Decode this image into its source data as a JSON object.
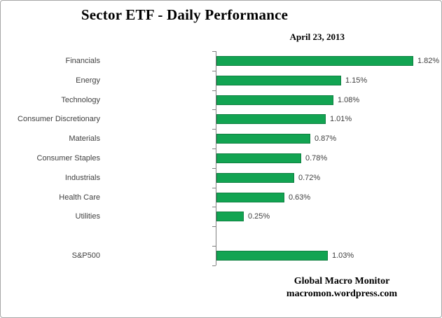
{
  "title": "Sector ETF - Daily Performance",
  "date": "April 23, 2013",
  "attribution": {
    "line1": "Global Macro Monitor",
    "line2": "macromon.wordpress.com"
  },
  "colors": {
    "bar_fill": "#12a452",
    "bar_border": "#0e8040",
    "axis": "#808080",
    "label_text": "#404040"
  },
  "chart_data": {
    "type": "bar",
    "orientation": "horizontal",
    "title": "Sector ETF - Daily Performance",
    "subtitle": "April 23, 2013",
    "xlabel": "",
    "ylabel": "",
    "xlim": [
      0,
      2.0
    ],
    "gridlines": false,
    "legend": "none",
    "categories": [
      "Financials",
      "Energy",
      "Technology",
      "Consumer Discretionary",
      "Materials",
      "Consumer Staples",
      "Industrials",
      "Health Care",
      "Utilities",
      "",
      "S&P500"
    ],
    "values": [
      1.82,
      1.15,
      1.08,
      1.01,
      0.87,
      0.78,
      0.72,
      0.63,
      0.25,
      null,
      1.03
    ],
    "value_labels": [
      "1.82%",
      "1.15%",
      "1.08%",
      "1.01%",
      "0.87%",
      "0.78%",
      "0.72%",
      "0.63%",
      "0.25%",
      "",
      "1.03%"
    ]
  }
}
